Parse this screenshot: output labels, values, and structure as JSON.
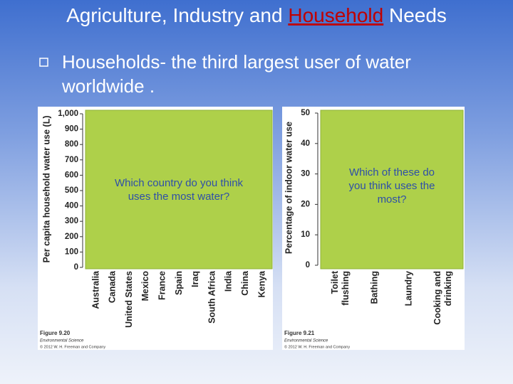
{
  "slide": {
    "title": [
      "Agriculture, Industry and ",
      "Household",
      " Needs"
    ],
    "bullet": [
      "Households- the third largest user of water",
      "worldwide ."
    ],
    "figures": [
      {
        "y_label": "Per capita household water use (L)",
        "yticks": [
          "1,000",
          "900",
          "800",
          "700",
          "600",
          "500",
          "400",
          "300",
          "200",
          "100",
          "0"
        ],
        "categories": [
          [
            "Australia"
          ],
          [
            "Canada"
          ],
          [
            "United States"
          ],
          [
            "Mexico"
          ],
          [
            "France"
          ],
          [
            "Spain"
          ],
          [
            "Iraq"
          ],
          [
            "South Africa"
          ],
          [
            "India"
          ],
          [
            "China"
          ],
          [
            "Kenya"
          ]
        ],
        "question": [
          "Which country do you think",
          "uses the most water?"
        ],
        "caption": [
          "Figure 9.20",
          "Environmental Science",
          "© 2012 W. H. Freeman and Company"
        ]
      },
      {
        "y_label": "Percentage of indoor water use",
        "yticks": [
          "50",
          "40",
          "30",
          "20",
          "10",
          "0"
        ],
        "categories": [
          [
            "Toilet",
            "flushing"
          ],
          [
            "Bathing"
          ],
          [
            "Laundry"
          ],
          [
            "Cooking and",
            "drinking"
          ]
        ],
        "question": [
          "Which of these do",
          "you think uses the",
          "most?"
        ],
        "caption": [
          "Figure 9.21",
          "Environmental Science",
          "© 2012 W. H. Freeman and Company"
        ]
      }
    ]
  }
}
